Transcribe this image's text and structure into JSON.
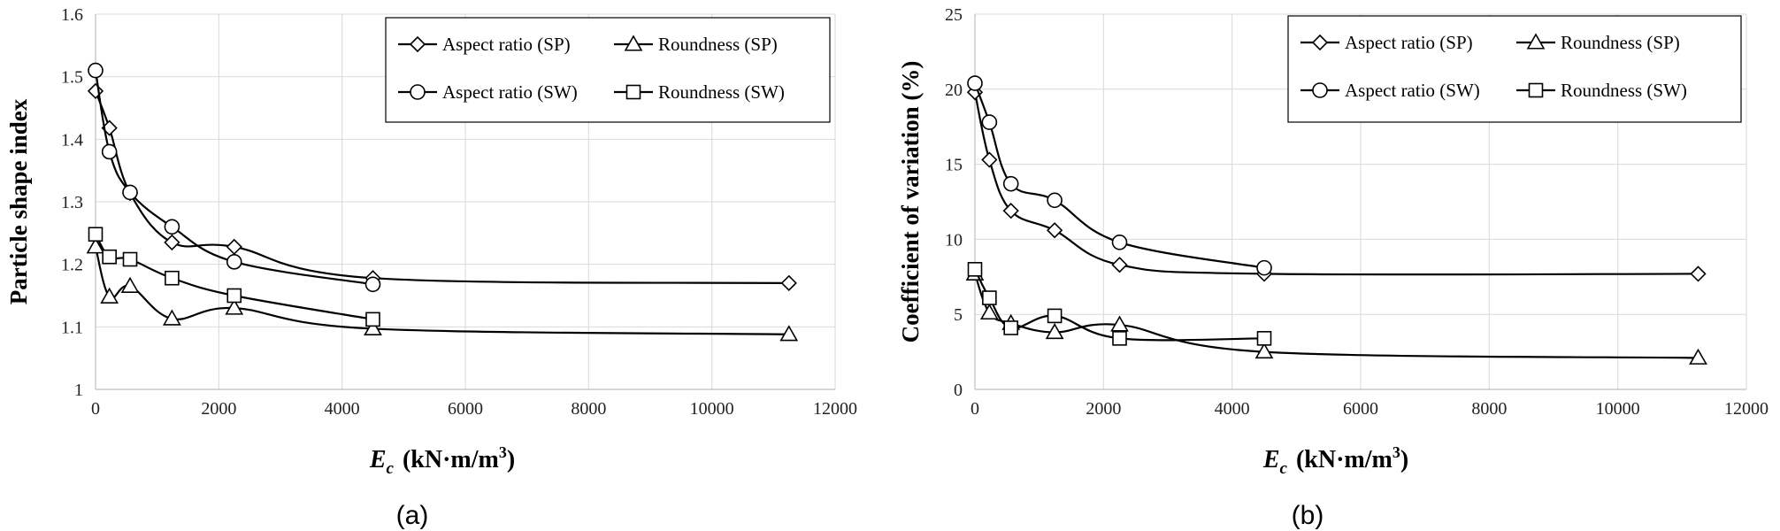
{
  "chart_data": [
    {
      "type": "line",
      "panel_label": "(a)",
      "ylabel": "Particle shape index",
      "xlabel_main": "E",
      "xlabel_sub": "c",
      "xlabel_units": "(kN·m/m",
      "xlabel_sup": "3",
      "xlabel_close": ")",
      "xlim": [
        0,
        12000
      ],
      "ylim": [
        1,
        1.6
      ],
      "xticks": [
        0,
        2000,
        4000,
        6000,
        8000,
        10000,
        12000
      ],
      "yticks": [
        1,
        1.1,
        1.2,
        1.3,
        1.4,
        1.5,
        1.6
      ],
      "ytick_labels": [
        "1",
        "1.1",
        "1.2",
        "1.3",
        "1.4",
        "1.5",
        "1.6"
      ],
      "grid": true,
      "legend_position": "top-right",
      "series": [
        {
          "name": "Aspect ratio (SP)",
          "marker": "diamond",
          "x": [
            0,
            225,
            560,
            1240,
            2250,
            4500,
            11250
          ],
          "y": [
            1.477,
            1.418,
            1.314,
            1.235,
            1.228,
            1.178,
            1.17
          ]
        },
        {
          "name": "Roundness (SP)",
          "marker": "triangle",
          "x": [
            0,
            225,
            560,
            1240,
            2250,
            4500,
            11250
          ],
          "y": [
            1.228,
            1.148,
            1.165,
            1.113,
            1.13,
            1.097,
            1.088
          ]
        },
        {
          "name": "Aspect ratio (SW)",
          "marker": "circle",
          "x": [
            0,
            225,
            560,
            1240,
            2250,
            4500
          ],
          "y": [
            1.51,
            1.38,
            1.315,
            1.26,
            1.204,
            1.168
          ]
        },
        {
          "name": "Roundness (SW)",
          "marker": "square",
          "x": [
            0,
            225,
            560,
            1240,
            2250,
            4500
          ],
          "y": [
            1.248,
            1.212,
            1.208,
            1.178,
            1.15,
            1.112
          ]
        }
      ]
    },
    {
      "type": "line",
      "panel_label": "(b)",
      "ylabel": "Coefficient of variation (%)",
      "xlabel_main": "E",
      "xlabel_sub": "c",
      "xlabel_units": "(kN·m/m",
      "xlabel_sup": "3",
      "xlabel_close": ")",
      "xlim": [
        0,
        12000
      ],
      "ylim": [
        0,
        25
      ],
      "xticks": [
        0,
        2000,
        4000,
        6000,
        8000,
        10000,
        12000
      ],
      "yticks": [
        0,
        5,
        10,
        15,
        20,
        25
      ],
      "ytick_labels": [
        "0",
        "5",
        "10",
        "15",
        "20",
        "25"
      ],
      "grid": true,
      "legend_position": "top-right",
      "series": [
        {
          "name": "Aspect ratio (SP)",
          "marker": "diamond",
          "x": [
            0,
            225,
            560,
            1240,
            2250,
            4500,
            11250
          ],
          "y": [
            19.8,
            15.3,
            11.9,
            10.6,
            8.3,
            7.7,
            7.7
          ]
        },
        {
          "name": "Roundness (SP)",
          "marker": "triangle",
          "x": [
            0,
            225,
            560,
            1240,
            2250,
            4500,
            11250
          ],
          "y": [
            7.7,
            5.1,
            4.4,
            3.8,
            4.3,
            2.5,
            2.1
          ]
        },
        {
          "name": "Aspect ratio (SW)",
          "marker": "circle",
          "x": [
            0,
            225,
            560,
            1240,
            2250,
            4500
          ],
          "y": [
            20.4,
            17.8,
            13.7,
            12.6,
            9.8,
            8.1
          ]
        },
        {
          "name": "Roundness (SW)",
          "marker": "square",
          "x": [
            0,
            225,
            560,
            1240,
            2250,
            4500
          ],
          "y": [
            8.0,
            6.1,
            4.1,
            4.9,
            3.4,
            3.4
          ]
        }
      ]
    }
  ]
}
